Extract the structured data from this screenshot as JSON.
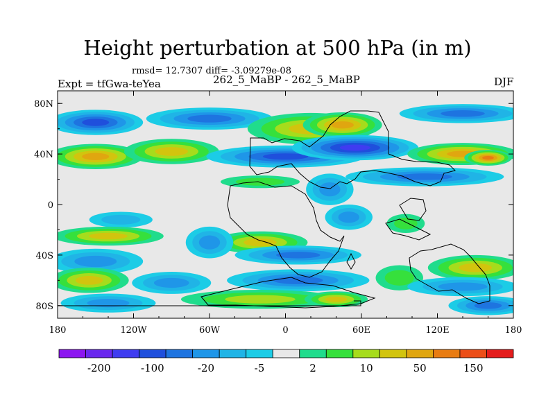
{
  "header": {
    "title": "Height perturbation at 500 hPa (in m)",
    "stats": "rmsd= 12.7307 diff= -3.09279e-08",
    "experiment": "Expt = tfGwa-teYea",
    "case": "262_5_MaBP - 262_5_MaBP",
    "season": "DJF"
  },
  "chart_data": {
    "type": "heatmap",
    "title": "Height perturbation at 500 hPa (in m)",
    "xlabel": "",
    "ylabel": "",
    "xlim": [
      -180,
      180
    ],
    "ylim": [
      -90,
      90
    ],
    "x_ticks": [
      {
        "value": -180,
        "label": "180"
      },
      {
        "value": -120,
        "label": "120W"
      },
      {
        "value": -60,
        "label": "60W"
      },
      {
        "value": 0,
        "label": "0"
      },
      {
        "value": 60,
        "label": "60E"
      },
      {
        "value": 120,
        "label": "120E"
      },
      {
        "value": 180,
        "label": "180"
      }
    ],
    "y_ticks": [
      {
        "value": 80,
        "label": "80N"
      },
      {
        "value": 40,
        "label": "40N"
      },
      {
        "value": 0,
        "label": "0"
      },
      {
        "value": -40,
        "label": "40S"
      },
      {
        "value": -80,
        "label": "80S"
      }
    ],
    "colorbar": {
      "colors": [
        "#8c16f0",
        "#6a28ee",
        "#3f3cf0",
        "#1f4fdc",
        "#1e74e0",
        "#1f96e8",
        "#20b4e6",
        "#1ccce6",
        "#e8e8e8",
        "#20dc8c",
        "#36e03c",
        "#a6dc1c",
        "#d2c40e",
        "#e0a610",
        "#e87c12",
        "#ec4e18",
        "#e41c1c"
      ],
      "labels": [
        "-200",
        "-100",
        "-20",
        "-5",
        "2",
        "10",
        "50",
        "150"
      ]
    },
    "field_blobs": [
      {
        "lon": -150,
        "lat": 65,
        "rlon": 30,
        "rlat": 8,
        "value": -60
      },
      {
        "lon": -60,
        "lat": 68,
        "rlon": 40,
        "rlat": 7,
        "value": -35
      },
      {
        "lon": 20,
        "lat": 60,
        "rlon": 40,
        "rlat": 10,
        "value": 40
      },
      {
        "lon": 45,
        "lat": 63,
        "rlon": 25,
        "rlat": 8,
        "value": 90
      },
      {
        "lon": 140,
        "lat": 72,
        "rlon": 40,
        "rlat": 6,
        "value": -25
      },
      {
        "lon": -150,
        "lat": 38,
        "rlon": 30,
        "rlat": 8,
        "value": 55
      },
      {
        "lon": -90,
        "lat": 42,
        "rlon": 30,
        "rlat": 8,
        "value": 30
      },
      {
        "lon": 0,
        "lat": 38,
        "rlon": 50,
        "rlat": 7,
        "value": -90
      },
      {
        "lon": 55,
        "lat": 45,
        "rlon": 40,
        "rlat": 8,
        "value": -110
      },
      {
        "lon": 140,
        "lat": 40,
        "rlon": 35,
        "rlat": 7,
        "value": 70
      },
      {
        "lon": 160,
        "lat": 37,
        "rlon": 15,
        "rlat": 5,
        "value": 120
      },
      {
        "lon": 110,
        "lat": 22,
        "rlon": 50,
        "rlat": 6,
        "value": -20
      },
      {
        "lon": -20,
        "lat": 18,
        "rlon": 25,
        "rlat": 4,
        "value": 8
      },
      {
        "lon": 35,
        "lat": 12,
        "rlon": 15,
        "rlat": 10,
        "value": -18
      },
      {
        "lon": 50,
        "lat": -10,
        "rlon": 15,
        "rlat": 8,
        "value": -12
      },
      {
        "lon": -130,
        "lat": -12,
        "rlon": 20,
        "rlat": 5,
        "value": -8
      },
      {
        "lon": -140,
        "lat": -25,
        "rlon": 35,
        "rlat": 6,
        "value": 20
      },
      {
        "lon": -20,
        "lat": -30,
        "rlon": 30,
        "rlat": 7,
        "value": 20
      },
      {
        "lon": 95,
        "lat": -15,
        "rlon": 12,
        "rlat": 6,
        "value": 8
      },
      {
        "lon": -150,
        "lat": -45,
        "rlon": 30,
        "rlat": 8,
        "value": -18
      },
      {
        "lon": -60,
        "lat": -30,
        "rlon": 15,
        "rlat": 10,
        "value": -15
      },
      {
        "lon": 10,
        "lat": -40,
        "rlon": 40,
        "rlat": 6,
        "value": -28
      },
      {
        "lon": 150,
        "lat": -50,
        "rlon": 30,
        "rlat": 8,
        "value": 25
      },
      {
        "lon": -155,
        "lat": -60,
        "rlon": 25,
        "rlat": 8,
        "value": 40
      },
      {
        "lon": -90,
        "lat": -62,
        "rlon": 25,
        "rlat": 7,
        "value": -15
      },
      {
        "lon": 10,
        "lat": -60,
        "rlon": 45,
        "rlat": 7,
        "value": -22
      },
      {
        "lon": 90,
        "lat": -58,
        "rlon": 15,
        "rlat": 8,
        "value": 6
      },
      {
        "lon": 140,
        "lat": -65,
        "rlon": 35,
        "rlat": 6,
        "value": -15
      },
      {
        "lon": -20,
        "lat": -75,
        "rlon": 50,
        "rlat": 6,
        "value": 12
      },
      {
        "lon": 40,
        "lat": -75,
        "rlon": 20,
        "rlat": 5,
        "value": 45
      },
      {
        "lon": -140,
        "lat": -78,
        "rlon": 30,
        "rlat": 6,
        "value": -12
      },
      {
        "lon": 160,
        "lat": -80,
        "rlon": 25,
        "rlat": 6,
        "value": -20
      }
    ]
  }
}
